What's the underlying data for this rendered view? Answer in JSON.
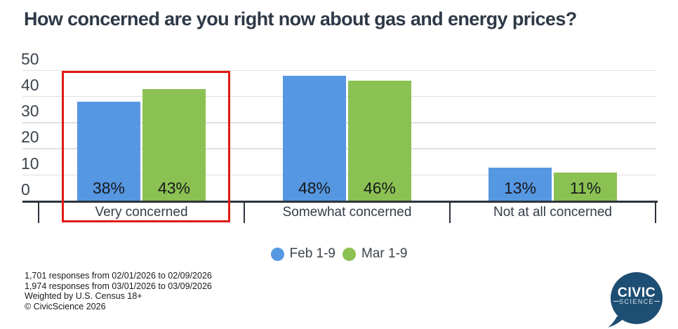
{
  "title": "How concerned are you right now about gas and energy prices?",
  "chart_data": {
    "type": "bar",
    "categories": [
      "Very concerned",
      "Somewhat concerned",
      "Not at all concerned"
    ],
    "series": [
      {
        "name": "Feb 1-9",
        "color": "#5697e2",
        "values": [
          38,
          48,
          13
        ]
      },
      {
        "name": "Mar 1-9",
        "color": "#8bc152",
        "values": [
          43,
          46,
          11
        ]
      }
    ],
    "value_suffix": "%",
    "ylim": [
      0,
      50
    ],
    "yticks": [
      0,
      10,
      20,
      30,
      40,
      50
    ],
    "grid": true,
    "legend_position": "bottom",
    "highlight": {
      "category": "Very concerned",
      "color": "#e01812"
    }
  },
  "colors": {
    "grid": "#e0e0e0",
    "axis": "#2d333c",
    "axis_text": "#3c444e",
    "value_text": "#17191c",
    "background": "#ffffff"
  },
  "footer": {
    "lines": [
      "1,701 responses from 02/01/2026 to 02/09/2026",
      "1,974 responses from 03/01/2026 to 03/09/2026",
      "Weighted by U.S. Census 18+",
      "© CivicScience 2026"
    ]
  },
  "logo": {
    "line1": "CIVIC",
    "line2": "SCIENCE",
    "color": "#1d4e74"
  }
}
